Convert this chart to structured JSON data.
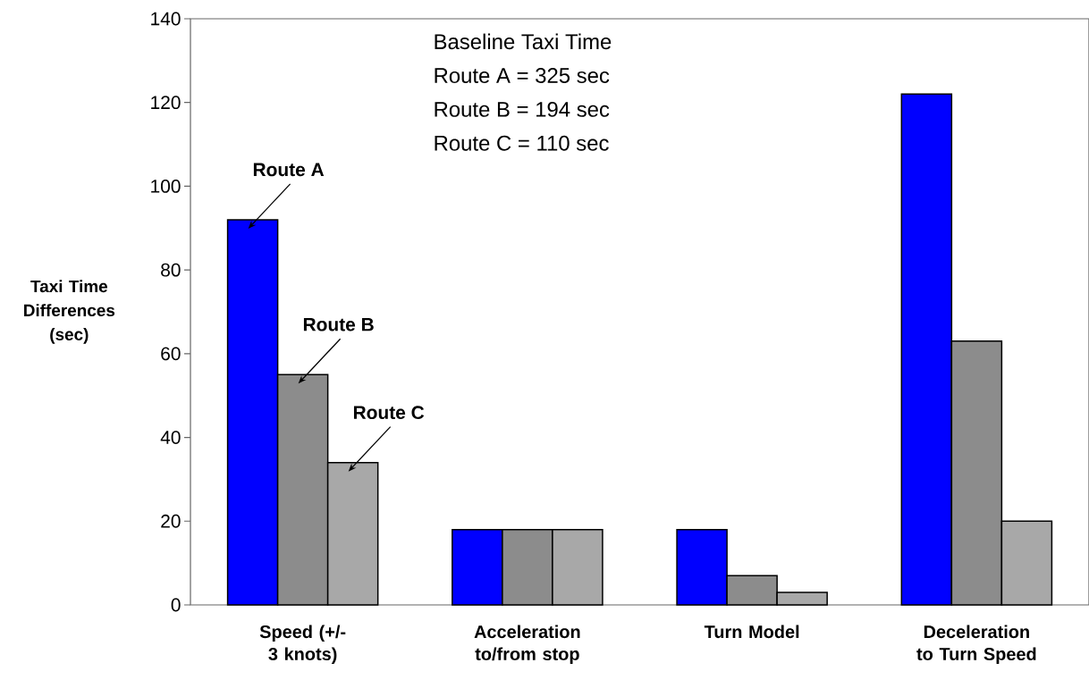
{
  "chart_data": {
    "type": "bar",
    "ylabel": "Taxi Time Differences (sec)",
    "categories": [
      "Speed  (+/- 3 knots)",
      "Acceleration to/from stop",
      "Turn Model",
      "Deceleration to Turn Speed"
    ],
    "series": [
      {
        "name": "Route A",
        "color": "#0000ff",
        "values": [
          92,
          18,
          18,
          122
        ]
      },
      {
        "name": "Route B",
        "color": "#8c8c8c",
        "values": [
          55,
          18,
          7,
          63
        ]
      },
      {
        "name": "Route C",
        "color": "#a8a8a8",
        "values": [
          34,
          18,
          3,
          20
        ]
      }
    ],
    "annotations": [
      "Baseline Taxi Time",
      "Route A = 325 sec",
      "Route B = 194 sec",
      "Route C = 110 sec"
    ],
    "ylim": [
      0,
      140
    ],
    "yticks": [
      0,
      20,
      40,
      60,
      80,
      100,
      120,
      140
    ],
    "grid": false,
    "legend": false
  }
}
